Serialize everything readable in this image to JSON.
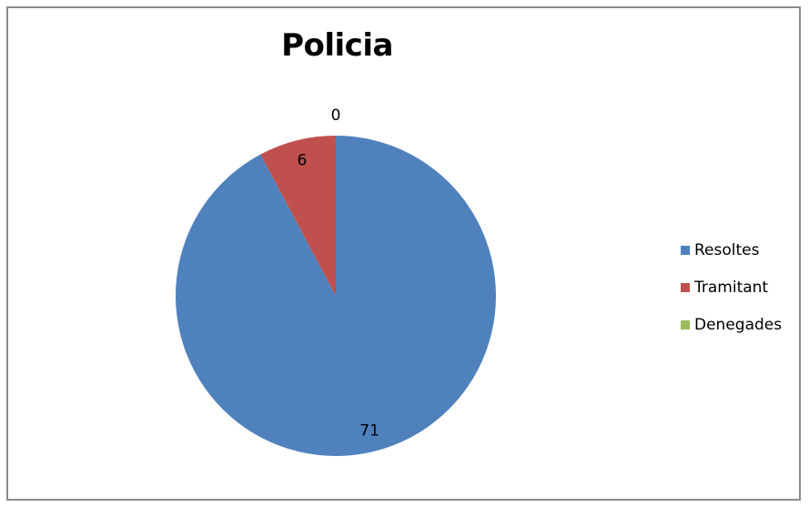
{
  "chart_data": {
    "type": "pie",
    "title": "Policia",
    "categories": [
      "Resoltes",
      "Tramitant",
      "Denegades"
    ],
    "values": [
      71,
      6,
      0
    ],
    "colors": [
      "#4f81bd",
      "#c0504d",
      "#9bbb59"
    ],
    "legend_position": "right",
    "data_labels": [
      "71",
      "6",
      "0"
    ]
  }
}
